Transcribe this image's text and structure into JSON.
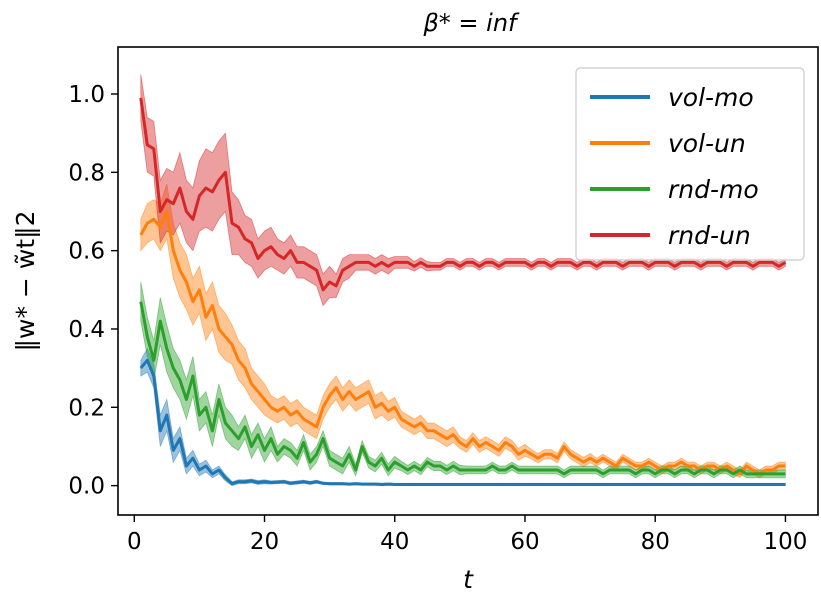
{
  "chart_data": {
    "type": "line",
    "title": "β* = inf",
    "xlabel": "t",
    "ylabel": "‖w* − w̃t‖2",
    "xlim": [
      -2.5,
      105
    ],
    "ylim": [
      -0.075,
      1.12
    ],
    "xticks": [
      0,
      20,
      40,
      60,
      80,
      100
    ],
    "xtick_labels": [
      "0",
      "20",
      "40",
      "60",
      "80",
      "100"
    ],
    "yticks": [
      0.0,
      0.2,
      0.4,
      0.6,
      0.8,
      1.0
    ],
    "ytick_labels": [
      "0.0",
      "0.2",
      "0.4",
      "0.6",
      "0.8",
      "1.0"
    ],
    "grid": false,
    "legend_position": "top-right",
    "x": [
      1,
      2,
      3,
      4,
      5,
      6,
      7,
      8,
      9,
      10,
      11,
      12,
      13,
      14,
      15,
      16,
      17,
      18,
      19,
      20,
      21,
      22,
      23,
      24,
      25,
      26,
      27,
      28,
      29,
      30,
      31,
      32,
      33,
      34,
      35,
      36,
      37,
      38,
      39,
      40,
      41,
      42,
      43,
      44,
      45,
      46,
      47,
      48,
      49,
      50,
      51,
      52,
      53,
      54,
      55,
      56,
      57,
      58,
      59,
      60,
      61,
      62,
      63,
      64,
      65,
      66,
      67,
      68,
      69,
      70,
      71,
      72,
      73,
      74,
      75,
      76,
      77,
      78,
      79,
      80,
      81,
      82,
      83,
      84,
      85,
      86,
      87,
      88,
      89,
      90,
      91,
      92,
      93,
      94,
      95,
      96,
      97,
      98,
      99,
      100
    ],
    "series": [
      {
        "name": "vol-mo",
        "color": "#1f77b4",
        "values": [
          0.3,
          0.32,
          0.28,
          0.14,
          0.18,
          0.09,
          0.12,
          0.05,
          0.07,
          0.04,
          0.05,
          0.03,
          0.04,
          0.02,
          0.005,
          0.01,
          0.01,
          0.012,
          0.008,
          0.01,
          0.008,
          0.009,
          0.01,
          0.006,
          0.008,
          0.01,
          0.007,
          0.01,
          0.006,
          0.005,
          0.005,
          0.005,
          0.004,
          0.005,
          0.004,
          0.004,
          0.004,
          0.003,
          0.004,
          0.003,
          0.003,
          0.003,
          0.003,
          0.003,
          0.003,
          0.003,
          0.003,
          0.003,
          0.003,
          0.003,
          0.003,
          0.003,
          0.003,
          0.003,
          0.003,
          0.003,
          0.003,
          0.003,
          0.003,
          0.003,
          0.003,
          0.003,
          0.003,
          0.003,
          0.003,
          0.003,
          0.003,
          0.003,
          0.003,
          0.003,
          0.003,
          0.003,
          0.003,
          0.003,
          0.003,
          0.003,
          0.003,
          0.003,
          0.003,
          0.003,
          0.003,
          0.003,
          0.003,
          0.003,
          0.003,
          0.003,
          0.003,
          0.003,
          0.003,
          0.003,
          0.003,
          0.003,
          0.003,
          0.003,
          0.003,
          0.003,
          0.003,
          0.003,
          0.003,
          0.003
        ],
        "spread": [
          0.02,
          0.03,
          0.03,
          0.04,
          0.04,
          0.03,
          0.03,
          0.02,
          0.02,
          0.015,
          0.015,
          0.01,
          0.01,
          0.008,
          0.005,
          0.005,
          0.005,
          0.005,
          0.005,
          0.005,
          0.004,
          0.004,
          0.004,
          0.004,
          0.004,
          0.004,
          0.004,
          0.004,
          0.003,
          0.003,
          0.003,
          0.003,
          0.003,
          0.003,
          0.003,
          0.003,
          0.003,
          0.003,
          0.003,
          0.003,
          0.003,
          0.003,
          0.003,
          0.003,
          0.003,
          0.003,
          0.003,
          0.003,
          0.003,
          0.003,
          0.003,
          0.003,
          0.003,
          0.003,
          0.003,
          0.003,
          0.003,
          0.003,
          0.003,
          0.003,
          0.003,
          0.003,
          0.003,
          0.003,
          0.003,
          0.003,
          0.003,
          0.003,
          0.003,
          0.003,
          0.003,
          0.003,
          0.003,
          0.003,
          0.003,
          0.003,
          0.003,
          0.003,
          0.003,
          0.003,
          0.003,
          0.003,
          0.003,
          0.003,
          0.003,
          0.003,
          0.003,
          0.003,
          0.003,
          0.003,
          0.003,
          0.003,
          0.003,
          0.003,
          0.003,
          0.003,
          0.003,
          0.003,
          0.003,
          0.003
        ]
      },
      {
        "name": "vol-un",
        "color": "#ff7f0e",
        "values": [
          0.64,
          0.67,
          0.68,
          0.66,
          0.7,
          0.6,
          0.55,
          0.52,
          0.47,
          0.5,
          0.43,
          0.46,
          0.4,
          0.38,
          0.36,
          0.32,
          0.3,
          0.26,
          0.24,
          0.22,
          0.2,
          0.19,
          0.2,
          0.18,
          0.19,
          0.17,
          0.16,
          0.15,
          0.2,
          0.23,
          0.25,
          0.22,
          0.24,
          0.22,
          0.23,
          0.24,
          0.2,
          0.21,
          0.19,
          0.2,
          0.17,
          0.16,
          0.15,
          0.16,
          0.14,
          0.14,
          0.13,
          0.12,
          0.13,
          0.11,
          0.1,
          0.12,
          0.1,
          0.11,
          0.1,
          0.09,
          0.11,
          0.1,
          0.08,
          0.09,
          0.08,
          0.07,
          0.08,
          0.08,
          0.07,
          0.1,
          0.08,
          0.07,
          0.06,
          0.07,
          0.06,
          0.07,
          0.06,
          0.05,
          0.07,
          0.06,
          0.05,
          0.05,
          0.06,
          0.05,
          0.04,
          0.05,
          0.05,
          0.06,
          0.05,
          0.05,
          0.04,
          0.05,
          0.05,
          0.04,
          0.05,
          0.04,
          0.03,
          0.05,
          0.04,
          0.03,
          0.04,
          0.04,
          0.05,
          0.05
        ],
        "spread": [
          0.04,
          0.05,
          0.05,
          0.06,
          0.07,
          0.07,
          0.07,
          0.07,
          0.06,
          0.06,
          0.06,
          0.06,
          0.06,
          0.06,
          0.05,
          0.05,
          0.05,
          0.04,
          0.04,
          0.04,
          0.03,
          0.03,
          0.03,
          0.03,
          0.03,
          0.03,
          0.03,
          0.03,
          0.03,
          0.03,
          0.03,
          0.03,
          0.03,
          0.03,
          0.03,
          0.03,
          0.03,
          0.03,
          0.025,
          0.025,
          0.02,
          0.02,
          0.02,
          0.02,
          0.02,
          0.02,
          0.02,
          0.02,
          0.02,
          0.015,
          0.015,
          0.015,
          0.015,
          0.015,
          0.015,
          0.015,
          0.015,
          0.015,
          0.015,
          0.015,
          0.012,
          0.012,
          0.012,
          0.012,
          0.012,
          0.012,
          0.012,
          0.012,
          0.012,
          0.012,
          0.01,
          0.01,
          0.01,
          0.01,
          0.01,
          0.01,
          0.01,
          0.01,
          0.01,
          0.01,
          0.01,
          0.01,
          0.01,
          0.01,
          0.01,
          0.01,
          0.01,
          0.01,
          0.01,
          0.01,
          0.01,
          0.01,
          0.01,
          0.01,
          0.01,
          0.01,
          0.01,
          0.01,
          0.01,
          0.01
        ]
      },
      {
        "name": "rnd-mo",
        "color": "#2ca02c",
        "values": [
          0.47,
          0.38,
          0.32,
          0.42,
          0.35,
          0.3,
          0.27,
          0.22,
          0.28,
          0.18,
          0.2,
          0.14,
          0.22,
          0.16,
          0.14,
          0.12,
          0.15,
          0.1,
          0.13,
          0.09,
          0.12,
          0.08,
          0.1,
          0.09,
          0.07,
          0.11,
          0.06,
          0.08,
          0.12,
          0.07,
          0.06,
          0.05,
          0.08,
          0.04,
          0.1,
          0.06,
          0.05,
          0.07,
          0.04,
          0.06,
          0.05,
          0.04,
          0.05,
          0.04,
          0.06,
          0.05,
          0.05,
          0.04,
          0.05,
          0.04,
          0.04,
          0.04,
          0.04,
          0.04,
          0.05,
          0.04,
          0.04,
          0.05,
          0.04,
          0.04,
          0.04,
          0.04,
          0.04,
          0.04,
          0.04,
          0.03,
          0.04,
          0.04,
          0.04,
          0.04,
          0.04,
          0.03,
          0.04,
          0.04,
          0.04,
          0.04,
          0.03,
          0.04,
          0.04,
          0.03,
          0.04,
          0.04,
          0.03,
          0.04,
          0.04,
          0.03,
          0.04,
          0.04,
          0.03,
          0.04,
          0.04,
          0.03,
          0.04,
          0.03,
          0.03,
          0.03,
          0.03,
          0.03,
          0.03,
          0.03
        ],
        "spread": [
          0.05,
          0.05,
          0.05,
          0.06,
          0.06,
          0.05,
          0.05,
          0.05,
          0.05,
          0.04,
          0.04,
          0.04,
          0.04,
          0.04,
          0.04,
          0.03,
          0.03,
          0.03,
          0.03,
          0.03,
          0.03,
          0.02,
          0.02,
          0.02,
          0.02,
          0.02,
          0.02,
          0.02,
          0.02,
          0.02,
          0.02,
          0.02,
          0.02,
          0.015,
          0.015,
          0.015,
          0.015,
          0.015,
          0.015,
          0.015,
          0.012,
          0.012,
          0.012,
          0.012,
          0.012,
          0.012,
          0.012,
          0.012,
          0.012,
          0.012,
          0.01,
          0.01,
          0.01,
          0.01,
          0.01,
          0.01,
          0.01,
          0.01,
          0.01,
          0.01,
          0.01,
          0.01,
          0.01,
          0.01,
          0.01,
          0.01,
          0.01,
          0.01,
          0.01,
          0.01,
          0.01,
          0.01,
          0.01,
          0.01,
          0.01,
          0.01,
          0.01,
          0.01,
          0.01,
          0.01,
          0.01,
          0.01,
          0.01,
          0.01,
          0.01,
          0.01,
          0.01,
          0.01,
          0.01,
          0.01,
          0.01,
          0.01,
          0.01,
          0.01,
          0.01,
          0.01,
          0.01,
          0.01,
          0.01,
          0.01
        ]
      },
      {
        "name": "rnd-un",
        "color": "#d62728",
        "values": [
          0.99,
          0.87,
          0.86,
          0.7,
          0.73,
          0.72,
          0.76,
          0.7,
          0.68,
          0.74,
          0.76,
          0.75,
          0.78,
          0.8,
          0.67,
          0.66,
          0.63,
          0.62,
          0.58,
          0.6,
          0.61,
          0.59,
          0.58,
          0.6,
          0.57,
          0.57,
          0.56,
          0.55,
          0.5,
          0.52,
          0.51,
          0.55,
          0.56,
          0.57,
          0.57,
          0.57,
          0.56,
          0.57,
          0.56,
          0.57,
          0.57,
          0.57,
          0.56,
          0.57,
          0.56,
          0.56,
          0.56,
          0.57,
          0.57,
          0.56,
          0.57,
          0.57,
          0.56,
          0.57,
          0.57,
          0.56,
          0.57,
          0.57,
          0.57,
          0.57,
          0.56,
          0.57,
          0.57,
          0.56,
          0.57,
          0.57,
          0.57,
          0.56,
          0.57,
          0.57,
          0.56,
          0.57,
          0.57,
          0.57,
          0.56,
          0.57,
          0.57,
          0.57,
          0.56,
          0.57,
          0.57,
          0.57,
          0.56,
          0.57,
          0.57,
          0.57,
          0.56,
          0.57,
          0.57,
          0.57,
          0.56,
          0.57,
          0.57,
          0.57,
          0.56,
          0.57,
          0.57,
          0.57,
          0.56,
          0.57
        ],
        "spread": [
          0.06,
          0.07,
          0.07,
          0.08,
          0.08,
          0.08,
          0.09,
          0.08,
          0.08,
          0.09,
          0.1,
          0.1,
          0.1,
          0.1,
          0.08,
          0.07,
          0.06,
          0.06,
          0.05,
          0.05,
          0.05,
          0.04,
          0.04,
          0.04,
          0.04,
          0.04,
          0.04,
          0.04,
          0.04,
          0.04,
          0.03,
          0.03,
          0.03,
          0.02,
          0.02,
          0.02,
          0.02,
          0.02,
          0.02,
          0.015,
          0.015,
          0.015,
          0.012,
          0.012,
          0.012,
          0.01,
          0.01,
          0.01,
          0.01,
          0.01,
          0.01,
          0.01,
          0.01,
          0.01,
          0.01,
          0.01,
          0.01,
          0.01,
          0.01,
          0.01,
          0.01,
          0.01,
          0.01,
          0.01,
          0.01,
          0.01,
          0.01,
          0.01,
          0.01,
          0.01,
          0.01,
          0.01,
          0.01,
          0.01,
          0.01,
          0.01,
          0.01,
          0.01,
          0.01,
          0.01,
          0.01,
          0.01,
          0.01,
          0.01,
          0.01,
          0.01,
          0.01,
          0.01,
          0.01,
          0.01,
          0.01,
          0.01,
          0.01,
          0.01,
          0.01,
          0.01,
          0.01,
          0.01,
          0.01,
          0.01
        ]
      }
    ]
  }
}
